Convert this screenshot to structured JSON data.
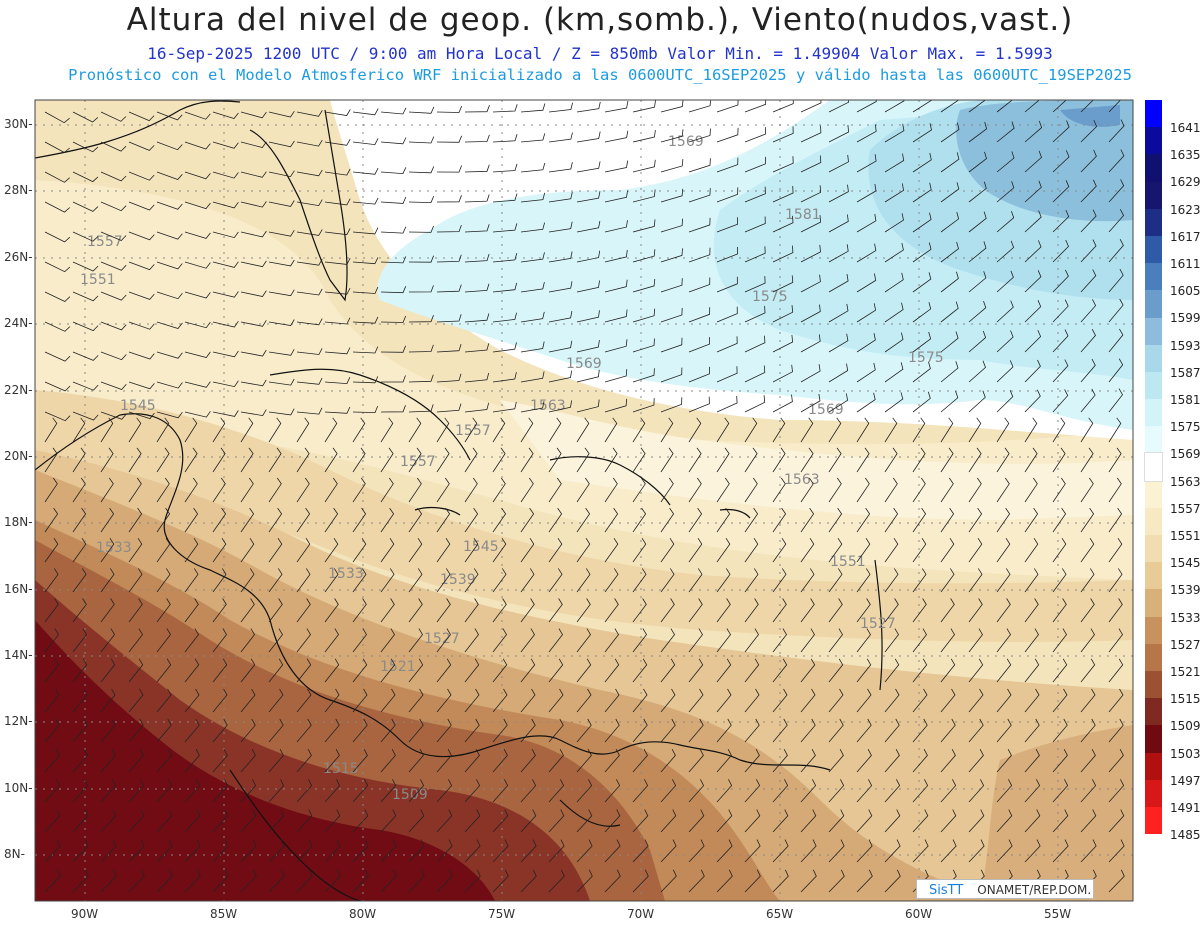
{
  "header": {
    "title": "Altura del nivel de geop. (km,somb.), Viento(nudos,vast.)",
    "subtitle1": "16-Sep-2025  1200 UTC / 9:00 am Hora Local / Z = 850mb      Valor Min. = 1.49904  Valor Max. = 1.5993",
    "subtitle2": "Pronóstico con el Modelo Atmosferico WRF inicializado a las 0600UTC_16SEP2025 y válido hasta las  0600UTC_19SEP2025"
  },
  "lat_labels": [
    "30N",
    "28N",
    "26N",
    "24N",
    "22N",
    "20N",
    "18N",
    "16N",
    "14N",
    "12N",
    "10N",
    "8N"
  ],
  "lon_labels": [
    "90W",
    "85W",
    "80W",
    "75W",
    "70W",
    "65W",
    "60W",
    "55W"
  ],
  "colorbar": {
    "labels": [
      "1641",
      "1635",
      "1629",
      "1623",
      "1617",
      "1611",
      "1605",
      "1599",
      "1593",
      "1587",
      "1581",
      "1575",
      "1569",
      "1563",
      "1557",
      "1551",
      "1545",
      "1539",
      "1533",
      "1527",
      "1521",
      "1515",
      "1509",
      "1503",
      "1497",
      "1491",
      "1485"
    ],
    "colors": [
      "#0000ff",
      "#0a0a9c",
      "#101070",
      "#16166e",
      "#1e2e86",
      "#2e5aa8",
      "#4a7fbe",
      "#6a9ccc",
      "#8ebcdc",
      "#a8d8ea",
      "#bde8f2",
      "#d2f3f8",
      "#e6fbfd",
      "#ffffff",
      "#fbf2d4",
      "#f7e9c4",
      "#f2ddb0",
      "#e8cb96",
      "#d8b07a",
      "#c8925e",
      "#b67648",
      "#9c5232",
      "#7e2a22",
      "#6e0a10",
      "#b01010",
      "#d81818",
      "#ff2020"
    ]
  },
  "contour_labels": [
    "1569",
    "1581",
    "1557",
    "1551",
    "1575",
    "1569",
    "1575",
    "1569",
    "1563",
    "1545",
    "1557",
    "1557",
    "1563",
    "1551",
    "1545",
    "1539",
    "1533",
    "1533",
    "1527",
    "1521",
    "1527",
    "1515",
    "1509"
  ],
  "logo": {
    "brand": "SisTT",
    "org": "ONAMET/REP.DOM."
  },
  "colors": {
    "title": "#222222",
    "subtitle1": "#2233cc",
    "subtitle2": "#1d9be0"
  }
}
